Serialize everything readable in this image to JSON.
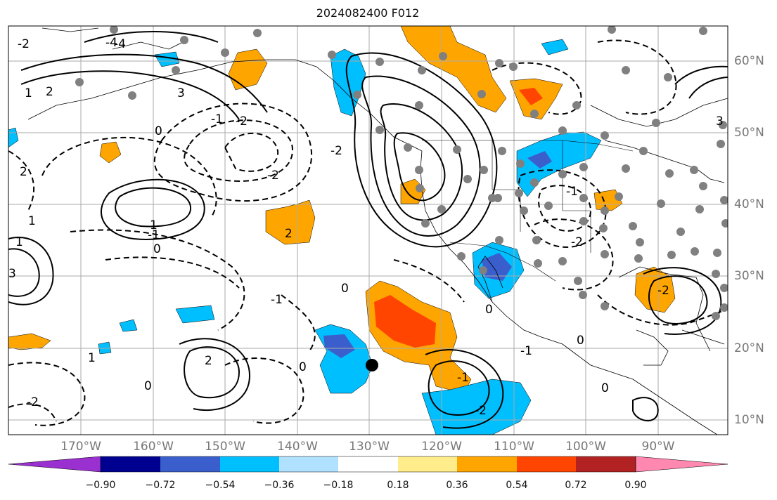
{
  "title": "2024082400 F012",
  "lat_labels": [
    "60°N",
    "50°N",
    "40°N",
    "30°N",
    "20°N",
    "10°N"
  ],
  "lon_labels": [
    "170°W",
    "160°W",
    "150°W",
    "140°W",
    "130°W",
    "120°W",
    "110°W",
    "100°W",
    "90°W"
  ],
  "colorbar": {
    "tick_labels": [
      "−0.90",
      "−0.72",
      "−0.54",
      "−0.36",
      "−0.18",
      "0.18",
      "0.36",
      "0.54",
      "0.72",
      "0.90"
    ],
    "colors": [
      "#9b30d0",
      "#000090",
      "#3a5fcd",
      "#00bfff",
      "#b0e2ff",
      "#ffffff",
      "#ffec8b",
      "#ffa500",
      "#ff4500",
      "#b22222",
      "#ff88b0"
    ]
  },
  "contour_labels": [
    "-4",
    "-2",
    "1",
    "2",
    "3",
    "0",
    "-1",
    "-2",
    "1",
    "2",
    "-2",
    "1",
    "-1",
    "0",
    "1",
    "-4",
    "2",
    "0",
    "-1",
    "2",
    "-2",
    "-1",
    "0",
    "3",
    "-2",
    "0",
    "-1",
    "0",
    "3",
    "-2",
    "-1",
    "0",
    "-2",
    "0",
    "-2",
    "1"
  ],
  "marker_colors": {
    "station": "#808080",
    "center": "#000000",
    "grid": "#aaaaaa"
  }
}
